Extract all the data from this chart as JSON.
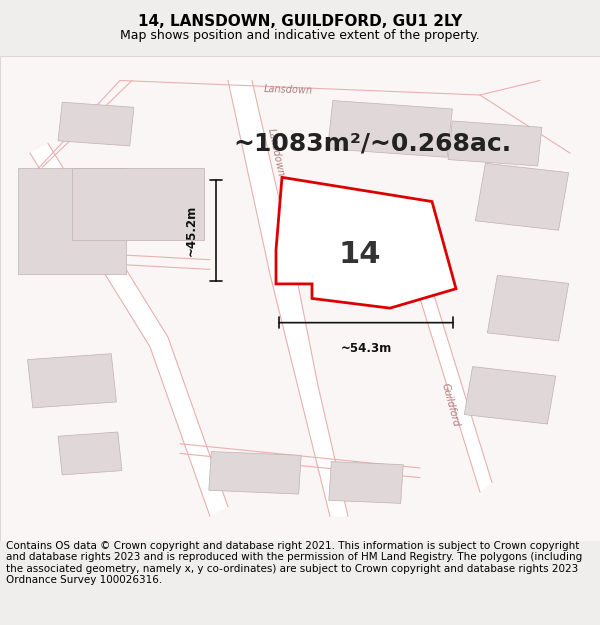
{
  "title": "14, LANSDOWN, GUILDFORD, GU1 2LY",
  "subtitle": "Map shows position and indicative extent of the property.",
  "area_text": "~1083m²/~0.268ac.",
  "label_14": "14",
  "dim_width": "~54.3m",
  "dim_height": "~45.2m",
  "footer": "Contains OS data © Crown copyright and database right 2021. This information is subject to Crown copyright and database rights 2023 and is reproduced with the permission of HM Land Registry. The polygons (including the associated geometry, namely x, y co-ordinates) are subject to Crown copyright and database rights 2023 Ordnance Survey 100026316.",
  "bg_color": "#f5f0f0",
  "map_bg": "#f9f5f5",
  "road_color": "#e8b0b0",
  "road_fill": "#ffffff",
  "building_color": "#d0c0c0",
  "building_fill": "#e0d8d8",
  "plot_color": "#dd0000",
  "plot_fill": "#ffffff",
  "road_label_color": "#b08080",
  "dim_color": "#111111",
  "title_fontsize": 11,
  "subtitle_fontsize": 9,
  "area_fontsize": 18,
  "label_fontsize": 22,
  "footer_fontsize": 7.5,
  "road_label_fontsize": 7
}
